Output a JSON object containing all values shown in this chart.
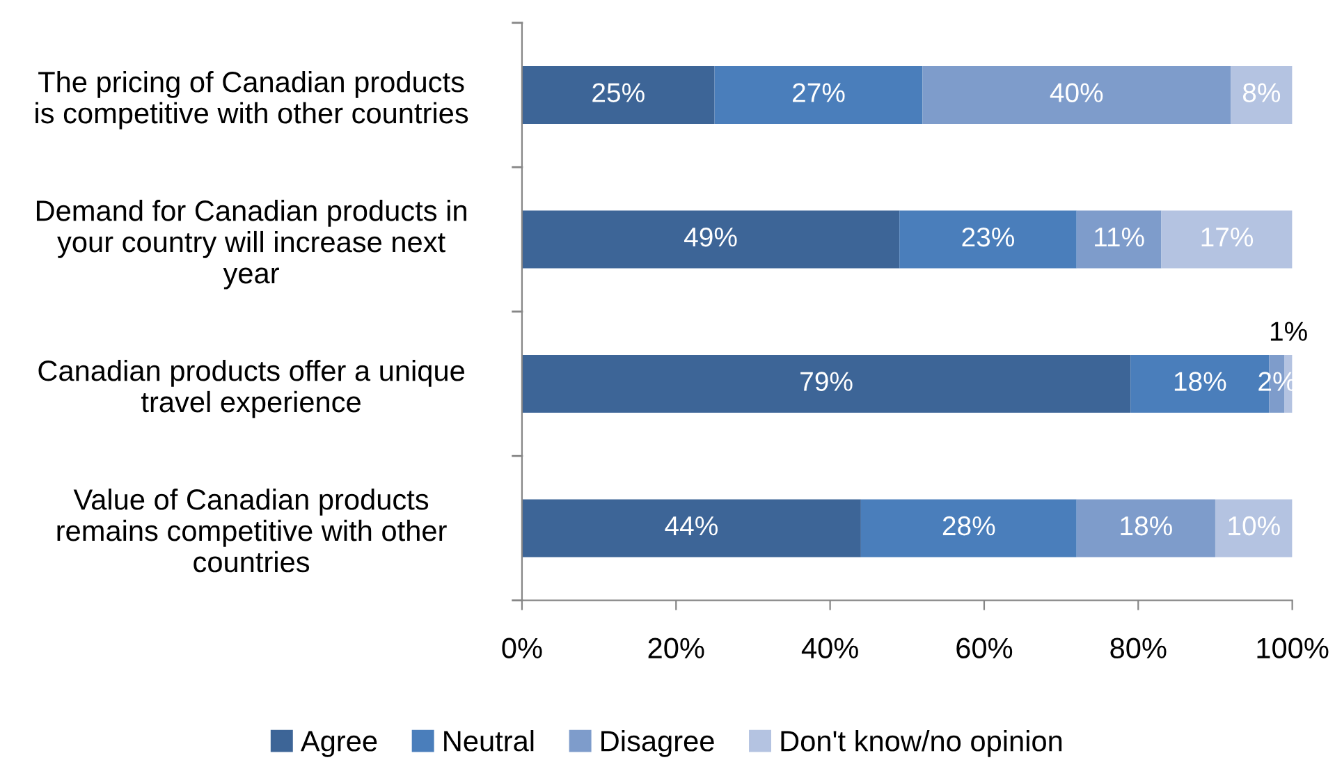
{
  "chart_data": {
    "type": "bar",
    "orientation": "horizontal",
    "stacked": true,
    "categories": [
      "The pricing of Canadian products\nis competitive with other countries",
      "Demand for Canadian products in\nyour country will increase next\nyear",
      "Canadian products offer a unique\ntravel experience",
      "Value of Canadian products\nremains competitive with other\ncountries"
    ],
    "series": [
      {
        "name": "Agree",
        "color": "#3d6597",
        "values": [
          25,
          49,
          79,
          44
        ],
        "value_labels": [
          "25%",
          "49%",
          "79%",
          "44%"
        ]
      },
      {
        "name": "Neutral",
        "color": "#4a7ebb",
        "values": [
          27,
          23,
          18,
          28
        ],
        "value_labels": [
          "27%",
          "23%",
          "18%",
          "28%"
        ]
      },
      {
        "name": "Disagree",
        "color": "#7e9ccb",
        "values": [
          40,
          11,
          2,
          18
        ],
        "value_labels": [
          "40%",
          "11%",
          "2%",
          "18%"
        ]
      },
      {
        "name": "Don't know/no opinion",
        "color": "#b4c3e1",
        "values": [
          8,
          17,
          1,
          10
        ],
        "value_labels": [
          "8%",
          "17%",
          "1%",
          "10%"
        ]
      }
    ],
    "xlim": [
      0,
      100
    ],
    "xticks": [
      {
        "value": 0,
        "label": "0%"
      },
      {
        "value": 20,
        "label": "20%"
      },
      {
        "value": 40,
        "label": "40%"
      },
      {
        "value": 60,
        "label": "60%"
      },
      {
        "value": 80,
        "label": "80%"
      },
      {
        "value": 100,
        "label": "100%"
      }
    ],
    "legend": "bottom",
    "grid": false
  }
}
